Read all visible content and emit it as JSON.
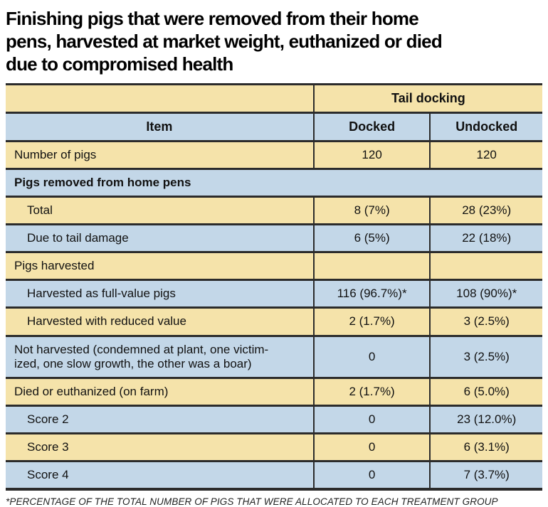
{
  "page_title_lines": [
    "Finishing pigs that were removed from their home",
    "pens, harvested at market weight, euthanized or died",
    "due to compromised health"
  ],
  "colors": {
    "row_yellow": "#f5e3aa",
    "row_blue": "#c3d7e8",
    "border": "#2b2b2b",
    "title_text": "#000000"
  },
  "footnote": "*PERCENTAGE OF THE TOTAL NUMBER OF PIGS THAT WERE ALLOCATED TO EACH TREATMENT GROUP",
  "chart_data": {
    "type": "table",
    "title": "Finishing pigs that were removed from their home pens, harvested at market weight, euthanized or died due to compromised health",
    "column_group_header": "Tail docking",
    "columns": [
      "Item",
      "Docked",
      "Undocked"
    ],
    "rows": [
      {
        "item": "Number of pigs",
        "docked": "120",
        "undocked": "120",
        "indent": false,
        "section": false
      },
      {
        "item": "Pigs removed from home pens",
        "indent": false,
        "section": true
      },
      {
        "item": "Total",
        "docked": "8 (7%)",
        "undocked": "28 (23%)",
        "indent": true,
        "section": false
      },
      {
        "item": "Due to tail damage",
        "docked": "6 (5%)",
        "undocked": "22 (18%)",
        "indent": true,
        "section": false
      },
      {
        "item": "Pigs harvested",
        "docked": "",
        "undocked": "",
        "indent": false,
        "section": false
      },
      {
        "item": "Harvested as full-value pigs",
        "docked": "116 (96.7%)*",
        "undocked": "108 (90%)*",
        "indent": true,
        "section": false
      },
      {
        "item": "Harvested with reduced value",
        "docked": "2 (1.7%)",
        "undocked": "3 (2.5%)",
        "indent": true,
        "section": false
      },
      {
        "item": "Not harvested (condemned at plant, one victimized, one slow growth, the other was a boar)",
        "item_display_lines": [
          "Not harvested (condemned at plant, one victim-",
          "ized, one slow growth, the other was a boar)"
        ],
        "docked": "0",
        "undocked": "3 (2.5%)",
        "indent": false,
        "section": false
      },
      {
        "item": "Died or euthanized (on farm)",
        "docked": "2 (1.7%)",
        "undocked": "6 (5.0%)",
        "indent": false,
        "section": false
      },
      {
        "item": "Score 2",
        "docked": "0",
        "undocked": "23 (12.0%)",
        "indent": true,
        "section": false
      },
      {
        "item": "Score 3",
        "docked": "0",
        "undocked": "6 (3.1%)",
        "indent": true,
        "section": false
      },
      {
        "item": "Score 4",
        "docked": "0",
        "undocked": "7 (3.7%)",
        "indent": true,
        "section": false
      }
    ],
    "footnote": "*PERCENTAGE OF THE TOTAL NUMBER OF PIGS THAT WERE ALLOCATED TO EACH TREATMENT GROUP"
  }
}
